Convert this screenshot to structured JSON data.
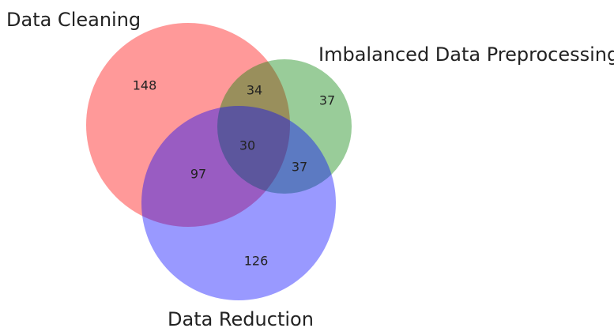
{
  "sets": {
    "data_cleaning": {
      "label": "Data Cleaning",
      "color": "#ff0000"
    },
    "imbalanced": {
      "label": "Imbalanced Data Preprocessing",
      "color": "#008000"
    },
    "data_reduction": {
      "label": "Data Reduction",
      "color": "#0000ff"
    }
  },
  "regions": {
    "cleaning_only": "148",
    "imbalanced_only": "37",
    "reduction_only": "126",
    "cleaning_imbalanced": "34",
    "cleaning_reduction": "97",
    "imbalanced_reduction": "37",
    "all_three": "30"
  },
  "style": {
    "circle_opacity": 0.4,
    "background": "#ffffff"
  }
}
